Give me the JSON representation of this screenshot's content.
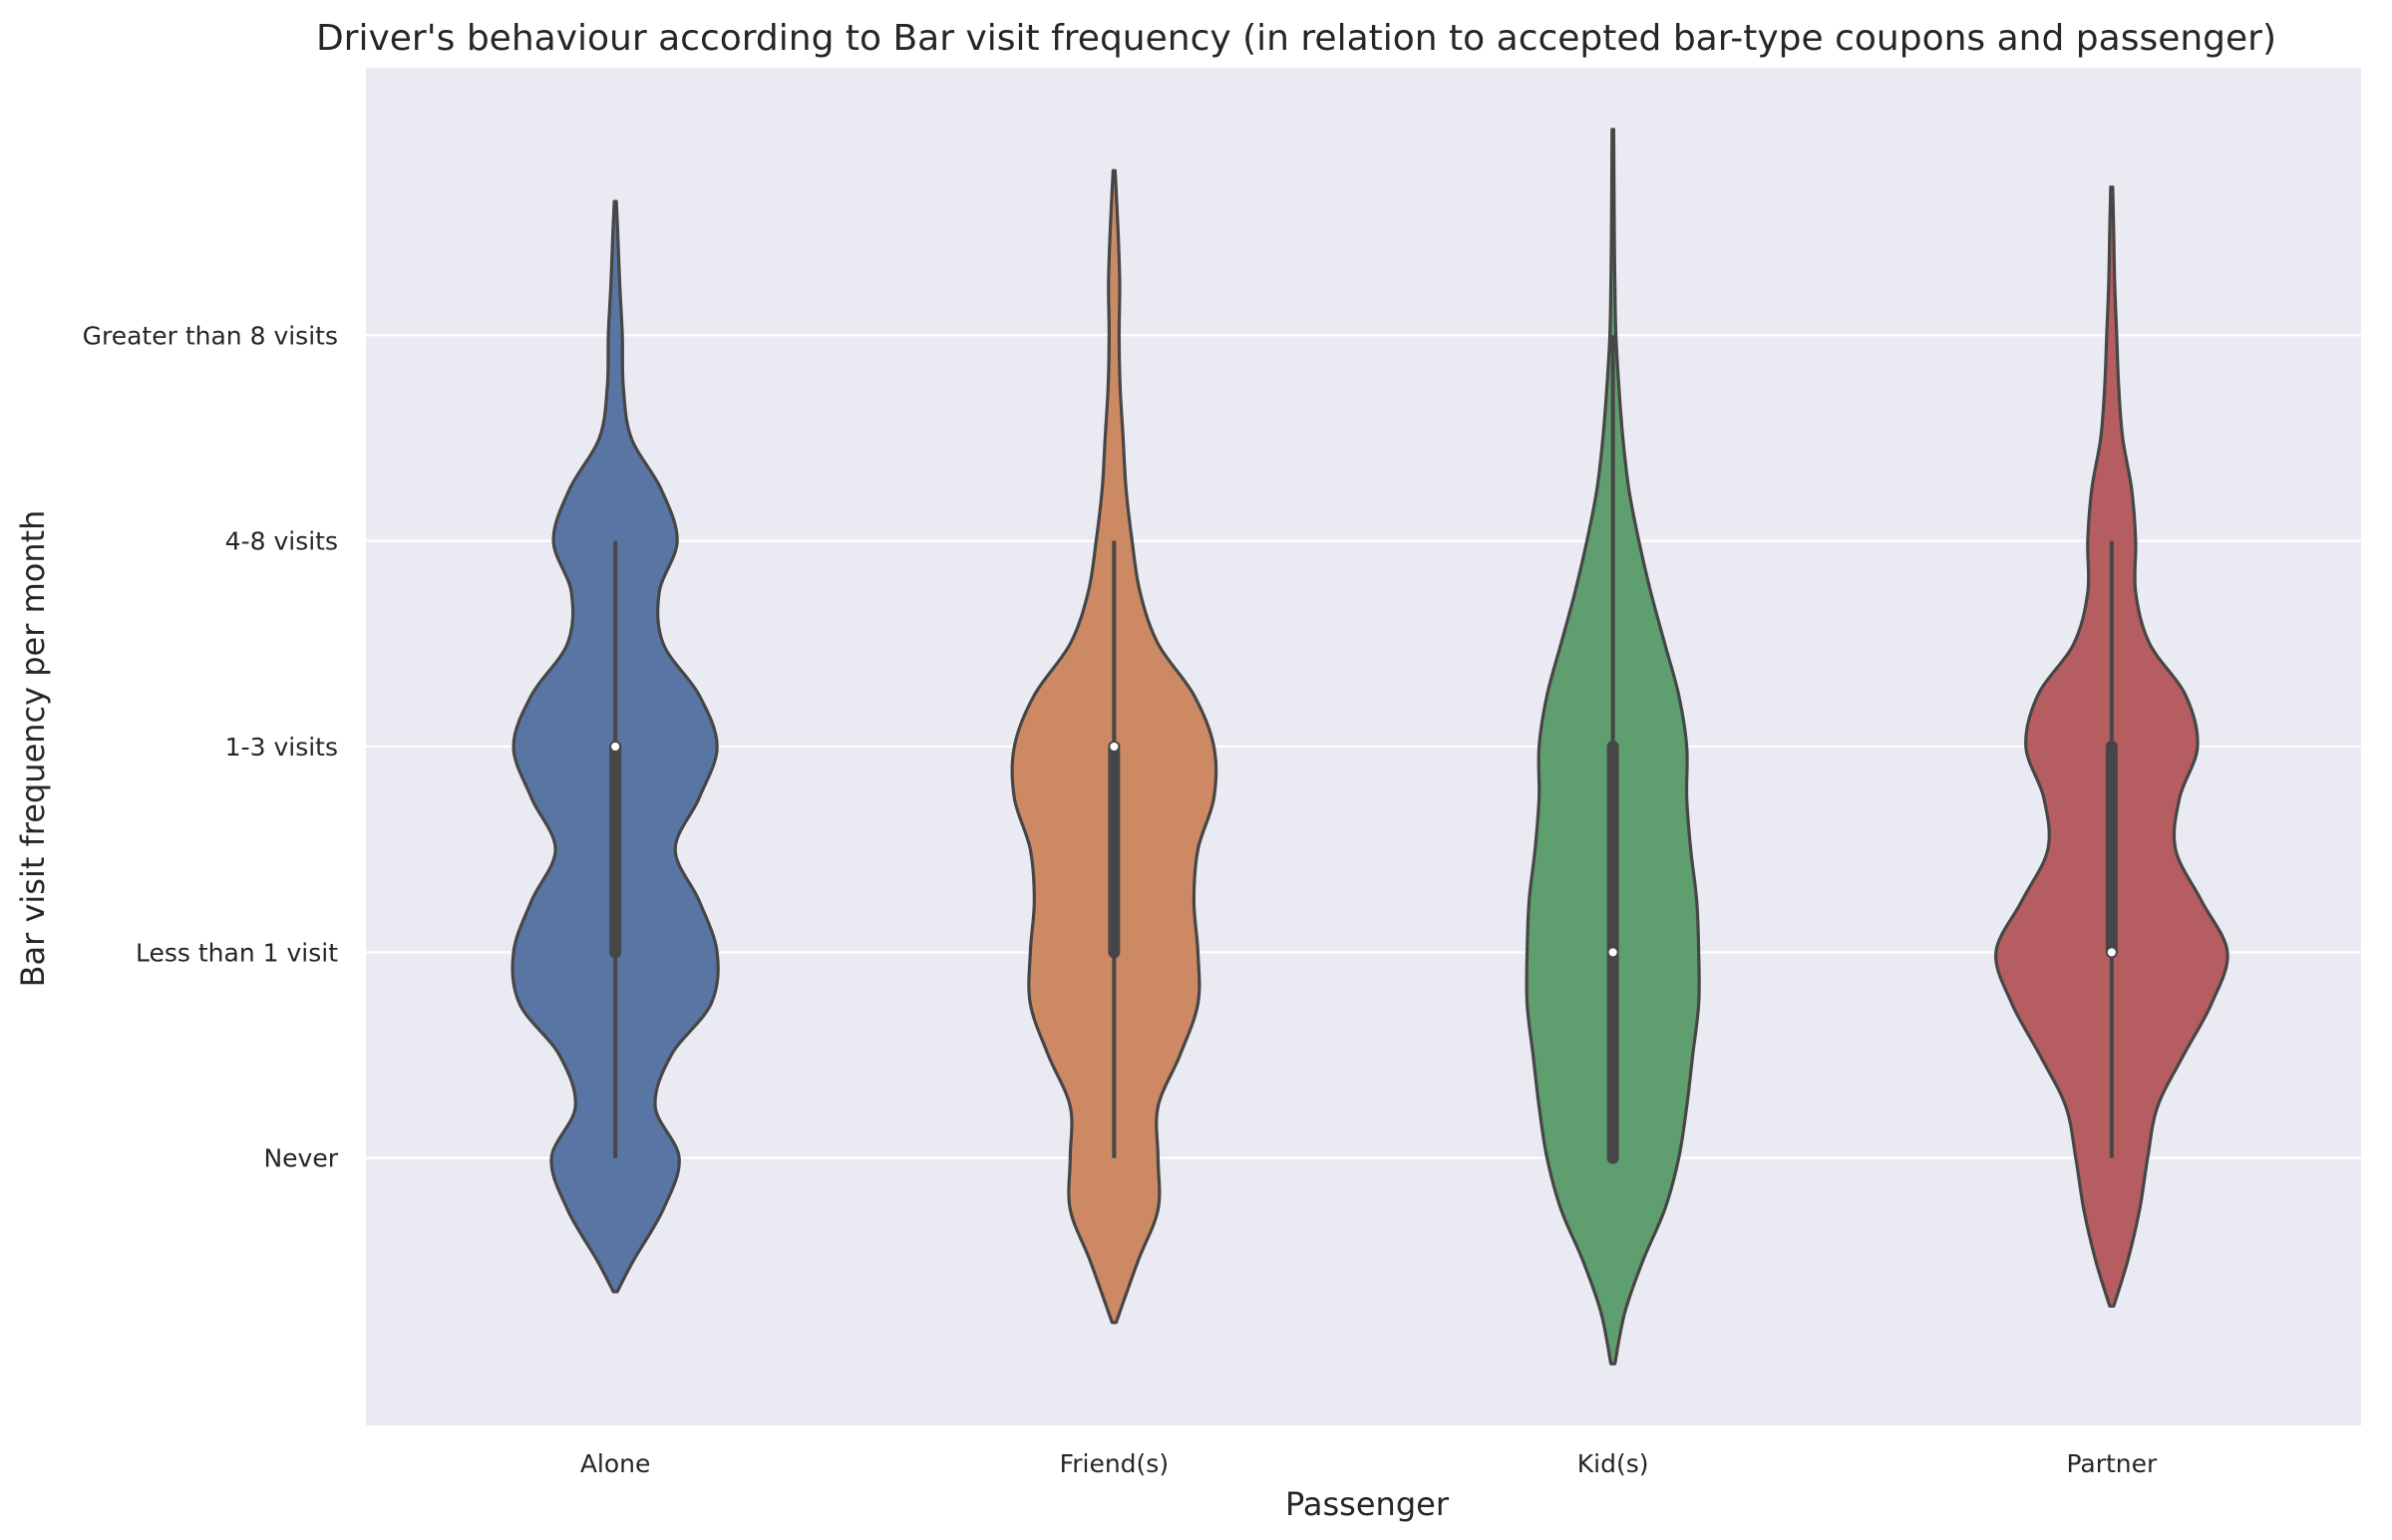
{
  "chart_data": {
    "type": "violin",
    "title": "Driver's behaviour according to Bar visit frequency (in relation to accepted bar-type coupons and passenger)",
    "xlabel": "Passenger",
    "ylabel": "Bar visit frequency per month",
    "categories": [
      "Alone",
      "Friend(s)",
      "Kid(s)",
      "Partner"
    ],
    "y_levels": [
      "Never",
      "Less than 1 visit",
      "1-3 visits",
      "4-8 visits",
      "Greater than 8 visits"
    ],
    "y_level_values": [
      0,
      1,
      2,
      3,
      4
    ],
    "ylim": [
      -1.3,
      5.3
    ],
    "grid": "horizontal",
    "background": "#eaeaf2",
    "outline_color": "#464646",
    "violins": [
      {
        "category": "Alone",
        "color": "#5875a4",
        "min": 0,
        "q1": 1,
        "median": 2,
        "q3": 2,
        "max": 3,
        "extent": [
          -0.65,
          4.65
        ],
        "density": [
          [
            -0.65,
            0.01
          ],
          [
            -0.5,
            0.09
          ],
          [
            -0.25,
            0.24
          ],
          [
            0.0,
            0.32
          ],
          [
            0.25,
            0.2
          ],
          [
            0.5,
            0.28
          ],
          [
            0.75,
            0.48
          ],
          [
            1.0,
            0.51
          ],
          [
            1.25,
            0.42
          ],
          [
            1.5,
            0.3
          ],
          [
            1.75,
            0.42
          ],
          [
            2.0,
            0.51
          ],
          [
            2.25,
            0.42
          ],
          [
            2.5,
            0.24
          ],
          [
            2.75,
            0.22
          ],
          [
            3.0,
            0.31
          ],
          [
            3.25,
            0.23
          ],
          [
            3.5,
            0.08
          ],
          [
            3.75,
            0.04
          ],
          [
            4.0,
            0.035
          ],
          [
            4.25,
            0.022
          ],
          [
            4.5,
            0.012
          ],
          [
            4.65,
            0.005
          ]
        ]
      },
      {
        "category": "Friend(s)",
        "color": "#cc8963",
        "min": 0,
        "q1": 1,
        "median": 2,
        "q3": 2,
        "max": 3,
        "extent": [
          -0.8,
          4.8
        ],
        "density": [
          [
            -0.8,
            0.01
          ],
          [
            -0.5,
            0.12
          ],
          [
            -0.25,
            0.22
          ],
          [
            0.0,
            0.22
          ],
          [
            0.25,
            0.22
          ],
          [
            0.5,
            0.33
          ],
          [
            0.75,
            0.42
          ],
          [
            1.0,
            0.42
          ],
          [
            1.25,
            0.4
          ],
          [
            1.5,
            0.42
          ],
          [
            1.75,
            0.5
          ],
          [
            2.0,
            0.5
          ],
          [
            2.25,
            0.4
          ],
          [
            2.5,
            0.22
          ],
          [
            2.75,
            0.13
          ],
          [
            3.0,
            0.09
          ],
          [
            3.25,
            0.06
          ],
          [
            3.5,
            0.045
          ],
          [
            3.75,
            0.03
          ],
          [
            4.0,
            0.025
          ],
          [
            4.25,
            0.028
          ],
          [
            4.5,
            0.02
          ],
          [
            4.8,
            0.005
          ]
        ]
      },
      {
        "category": "Kid(s)",
        "color": "#5f9e6e",
        "min": 0,
        "q1": 0,
        "median": 1,
        "q3": 2,
        "max": 4,
        "extent": [
          -1.0,
          5.0
        ],
        "density": [
          [
            -1.0,
            0.01
          ],
          [
            -0.75,
            0.06
          ],
          [
            -0.5,
            0.15
          ],
          [
            -0.25,
            0.26
          ],
          [
            0.0,
            0.33
          ],
          [
            0.25,
            0.37
          ],
          [
            0.5,
            0.4
          ],
          [
            0.75,
            0.43
          ],
          [
            1.0,
            0.43
          ],
          [
            1.25,
            0.42
          ],
          [
            1.5,
            0.39
          ],
          [
            1.75,
            0.37
          ],
          [
            2.0,
            0.37
          ],
          [
            2.25,
            0.33
          ],
          [
            2.5,
            0.26
          ],
          [
            2.75,
            0.19
          ],
          [
            3.0,
            0.13
          ],
          [
            3.25,
            0.08
          ],
          [
            3.5,
            0.05
          ],
          [
            3.75,
            0.03
          ],
          [
            4.0,
            0.015
          ],
          [
            4.25,
            0.01
          ],
          [
            4.5,
            0.007
          ],
          [
            5.0,
            0.004
          ]
        ]
      },
      {
        "category": "Partner",
        "color": "#b55d60",
        "min": 0,
        "q1": 1,
        "median": 1,
        "q3": 2,
        "max": 3,
        "extent": [
          -0.72,
          4.72
        ],
        "density": [
          [
            -0.72,
            0.01
          ],
          [
            -0.5,
            0.08
          ],
          [
            -0.25,
            0.14
          ],
          [
            0.0,
            0.18
          ],
          [
            0.25,
            0.23
          ],
          [
            0.5,
            0.36
          ],
          [
            0.75,
            0.5
          ],
          [
            1.0,
            0.58
          ],
          [
            1.25,
            0.45
          ],
          [
            1.5,
            0.32
          ],
          [
            1.75,
            0.34
          ],
          [
            2.0,
            0.43
          ],
          [
            2.25,
            0.37
          ],
          [
            2.5,
            0.19
          ],
          [
            2.75,
            0.12
          ],
          [
            3.0,
            0.12
          ],
          [
            3.25,
            0.1
          ],
          [
            3.5,
            0.055
          ],
          [
            3.75,
            0.035
          ],
          [
            4.0,
            0.025
          ],
          [
            4.25,
            0.015
          ],
          [
            4.5,
            0.01
          ],
          [
            4.72,
            0.005
          ]
        ]
      }
    ]
  }
}
